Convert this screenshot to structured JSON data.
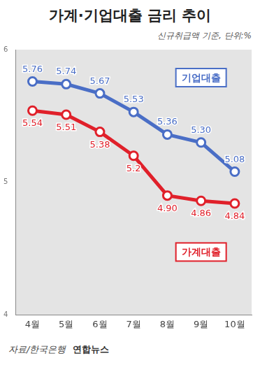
{
  "chart_data": {
    "type": "line",
    "title": "가계·기업대출 금리 추이",
    "subtitle": "신규취급액 기준, 단위:%",
    "source": "자료/한국은행",
    "credit": "연합뉴스",
    "categories": [
      "4월",
      "5월",
      "6월",
      "7월",
      "8월",
      "9월",
      "10월"
    ],
    "series": [
      {
        "name": "기업대출",
        "color": "#4a6ec6",
        "marker": "circle",
        "values": [
          5.76,
          5.74,
          5.67,
          5.53,
          5.36,
          5.3,
          5.08
        ],
        "value_labels": [
          "5.76",
          "5.74",
          "5.67",
          "5.53",
          "5.36",
          "5.30",
          "5.08"
        ]
      },
      {
        "name": "가계대출",
        "color": "#e0202a",
        "marker": "circle",
        "values": [
          5.54,
          5.51,
          5.38,
          5.2,
          4.9,
          4.86,
          4.84
        ],
        "value_labels": [
          "5.54",
          "5.51",
          "5.38",
          "5.2",
          "4.90",
          "4.86",
          "4.84"
        ]
      }
    ],
    "ylim": [
      4,
      6
    ],
    "yticks": [
      4,
      5,
      6
    ],
    "grid": false,
    "data_labels": true
  }
}
